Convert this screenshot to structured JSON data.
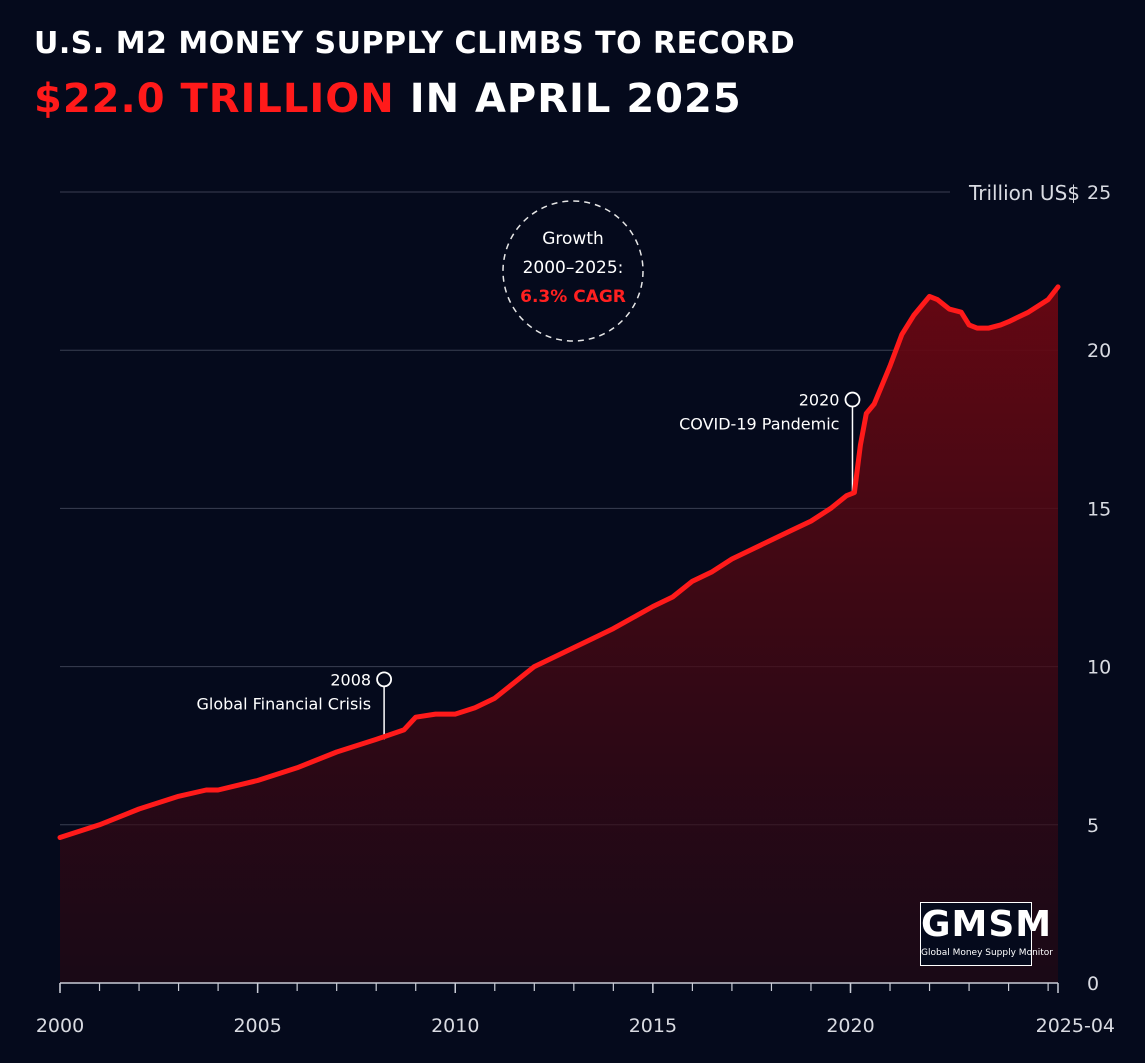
{
  "title": {
    "line1": "U.S. M2 MONEY SUPPLY CLIMBS TO RECORD",
    "line2_accent": "$22.0 TRILLION",
    "line2_rest": " IN APRIL 2025"
  },
  "colors": {
    "background": "#050a1c",
    "series": "#ff1a1a",
    "accent": "#ff2020",
    "grid": "#3a3f52"
  },
  "annotations": {
    "cagr": {
      "line1": "Growth",
      "line2": "2000–2025:",
      "line3": "6.3% CAGR"
    },
    "gfc": {
      "year": "2008",
      "label": "Global Financial Crisis",
      "x": 2008.2,
      "y": 7.7
    },
    "covid": {
      "year": "2020",
      "label": "COVID-19 Pandemic",
      "x": 2020.05,
      "y": 15.5
    }
  },
  "logo": {
    "name": "GMSM",
    "subtitle": "Global Money Supply Monitor"
  },
  "chart_data": {
    "type": "area",
    "title": "U.S. M2 MONEY SUPPLY CLIMBS TO RECORD $22.0 TRILLION IN APRIL 2025",
    "ylabel": "Trillion US$",
    "ylim": [
      0,
      25
    ],
    "xlim": [
      2000,
      2025.25
    ],
    "yticks": [
      0,
      5,
      10,
      15,
      20,
      25
    ],
    "xticks": [
      {
        "x": 2000,
        "label": "2000"
      },
      {
        "x": 2005,
        "label": "2005"
      },
      {
        "x": 2010,
        "label": "2010"
      },
      {
        "x": 2015,
        "label": "2015"
      },
      {
        "x": 2020,
        "label": "2020"
      },
      {
        "x": 2025.25,
        "label": "2025-04"
      }
    ],
    "grid": true,
    "y_axis_side": "right",
    "x": [
      2000,
      2001,
      2002,
      2003,
      2003.7,
      2004,
      2005,
      2006,
      2007,
      2008,
      2008.7,
      2009,
      2009.5,
      2010,
      2010.5,
      2011,
      2011.5,
      2011.7,
      2012,
      2012.5,
      2013,
      2013.5,
      2014,
      2015,
      2015.5,
      2016,
      2016.5,
      2017,
      2017.5,
      2018,
      2018.5,
      2019,
      2019.5,
      2019.9,
      2020.1,
      2020.25,
      2020.4,
      2020.6,
      2021,
      2021.3,
      2021.6,
      2022,
      2022.2,
      2022.5,
      2022.8,
      2023,
      2023.2,
      2023.5,
      2023.8,
      2024,
      2024.5,
      2025,
      2025.25
    ],
    "values": [
      4.6,
      5.0,
      5.5,
      5.9,
      6.1,
      6.1,
      6.4,
      6.8,
      7.3,
      7.7,
      8.0,
      8.4,
      8.5,
      8.5,
      8.7,
      9.0,
      9.5,
      9.7,
      10.0,
      10.3,
      10.6,
      10.9,
      11.2,
      11.9,
      12.2,
      12.7,
      13.0,
      13.4,
      13.7,
      14.0,
      14.3,
      14.6,
      15.0,
      15.4,
      15.5,
      17.0,
      18.0,
      18.3,
      19.5,
      20.5,
      21.1,
      21.7,
      21.6,
      21.3,
      21.2,
      20.8,
      20.7,
      20.7,
      20.8,
      20.9,
      21.2,
      21.6,
      22.0
    ]
  }
}
